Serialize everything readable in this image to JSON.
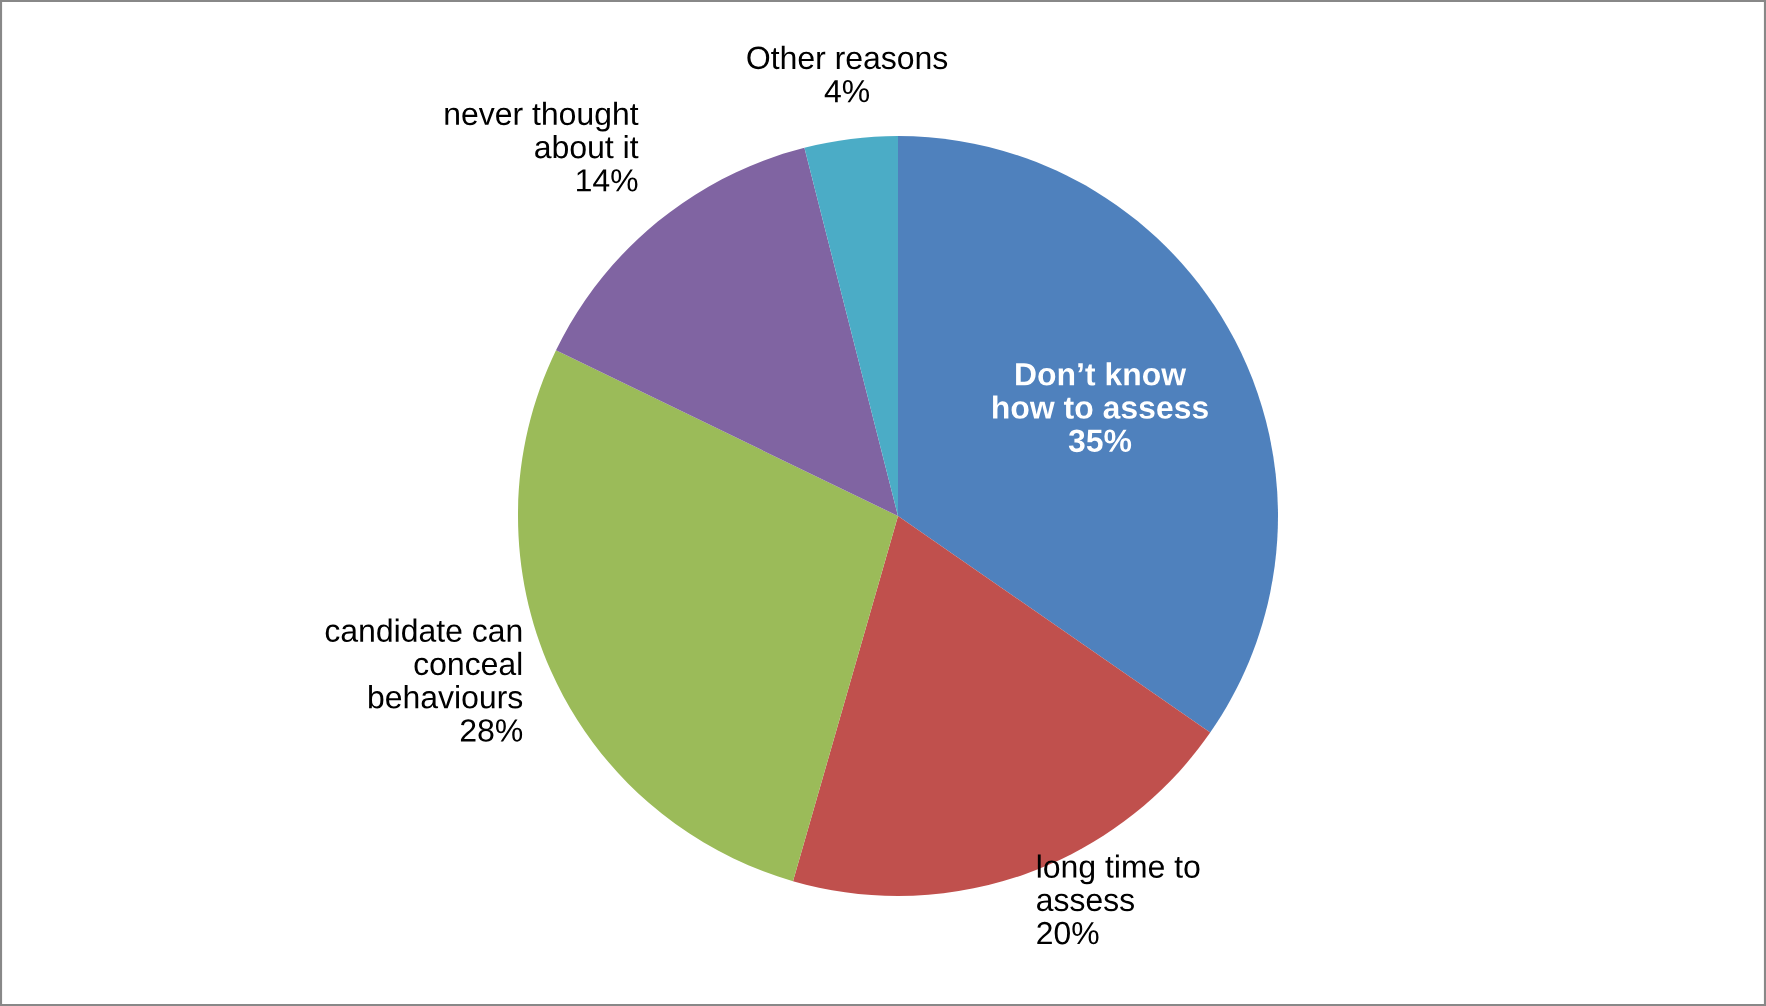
{
  "chart_data": {
    "type": "pie",
    "categories": [
      "Don’t know\nhow to assess",
      "long time to\nassess",
      "candidate can\nconceal\nbehaviours",
      "never thought\nabout it",
      "Other reasons"
    ],
    "values": [
      35,
      20,
      28,
      14,
      4
    ],
    "value_labels": [
      "35%",
      "20%",
      "28%",
      "14%",
      "4%"
    ],
    "colors": [
      "#4f81bd",
      "#c0504d",
      "#9bbb59",
      "#8064a2",
      "#4bacc6"
    ]
  }
}
